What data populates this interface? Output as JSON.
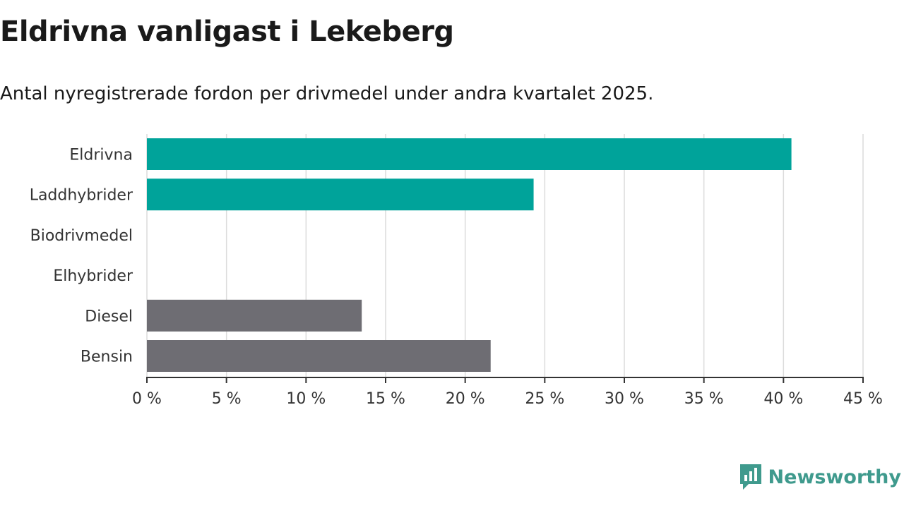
{
  "header": {
    "title": "Eldrivna vanligast i Lekeberg",
    "subtitle": "Antal nyregistrerade fordon per drivmedel under andra kvartalet 2025."
  },
  "brand": {
    "name": "Newsworthy",
    "color": "#3f9a8d",
    "icon": "bar-chart-logo-icon"
  },
  "chart_data": {
    "type": "bar",
    "orientation": "horizontal",
    "categories": [
      "Eldrivna",
      "Laddhybrider",
      "Biodrivmedel",
      "Elhybrider",
      "Diesel",
      "Bensin"
    ],
    "values": [
      40.5,
      24.3,
      0,
      0,
      13.5,
      21.6
    ],
    "colors": [
      "#00a39a",
      "#00a39a",
      "#00a39a",
      "#00a39a",
      "#6e6d73",
      "#6e6d73"
    ],
    "xlim": [
      0,
      45
    ],
    "xticks": [
      0,
      5,
      10,
      15,
      20,
      25,
      30,
      35,
      40,
      45
    ],
    "tick_suffix": " %",
    "grid": true,
    "xlabel": "",
    "ylabel": ""
  }
}
